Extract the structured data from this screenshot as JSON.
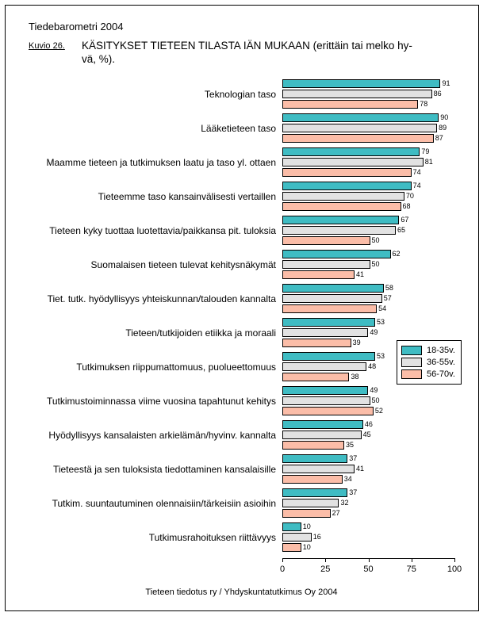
{
  "header": {
    "report_title": "Tiedebarometri 2004",
    "figure_label": "Kuvio 26.",
    "caption_line1": "KÄSITYKSET TIETEEN TILASTA IÄN MUKAAN (erittäin tai melko hy-",
    "caption_line2": "vä, %)."
  },
  "footer": {
    "source": "Tieteen tiedotus ry / Yhdyskuntatutkimus Oy 2004"
  },
  "colors": {
    "series_teal": "#3FBCC3",
    "series_gray": "#E2E2E2",
    "series_salmon": "#FBBDA8",
    "border": "#000000"
  },
  "chart_data": {
    "type": "bar",
    "orientation": "horizontal",
    "title": "KÄSITYKSET TIETEEN TILASTA IÄN MUKAAN (erittäin tai melko hyvä, %)",
    "xlabel": "",
    "ylabel": "",
    "xlim": [
      0,
      100
    ],
    "x_ticks": [
      0,
      25,
      50,
      75,
      100
    ],
    "grid": false,
    "legend_position": "middle-right",
    "value_labels": true,
    "categories": [
      "Teknologian taso",
      "Lääketieteen taso",
      "Maamme tieteen ja tutkimuksen laatu ja taso yl. ottaen",
      "Tieteemme taso kansainvälisesti vertaillen",
      "Tieteen kyky tuottaa luotettavia/paikkansa pit. tuloksia",
      "Suomalaisen tieteen tulevat kehitysnäkymät",
      "Tiet. tutk. hyödyllisyys yhteiskunnan/talouden kannalta",
      "Tieteen/tutkijoiden etiikka ja moraali",
      "Tutkimuksen riippumattomuus, puolueettomuus",
      "Tutkimustoiminnassa viime vuosina tapahtunut kehitys",
      "Hyödyllisyys kansalaisten arkielämän/hyvinv. kannalta",
      "Tieteestä ja sen tuloksista tiedottaminen kansalaisille",
      "Tutkim. suuntautuminen olennaisiin/tärkeisiin asioihin",
      "Tutkimusrahoituksen riittävyys"
    ],
    "series": [
      {
        "name": "18-35v.",
        "color": "#3FBCC3",
        "values": [
          91,
          90,
          79,
          74,
          67,
          62,
          58,
          53,
          53,
          49,
          46,
          37,
          37,
          10
        ]
      },
      {
        "name": "36-55v.",
        "color": "#E2E2E2",
        "values": [
          86,
          89,
          81,
          70,
          65,
          50,
          57,
          49,
          48,
          50,
          45,
          41,
          32,
          16
        ]
      },
      {
        "name": "56-70v.",
        "color": "#FBBDA8",
        "values": [
          78,
          87,
          74,
          68,
          50,
          41,
          54,
          39,
          38,
          52,
          35,
          34,
          27,
          10
        ]
      }
    ]
  }
}
